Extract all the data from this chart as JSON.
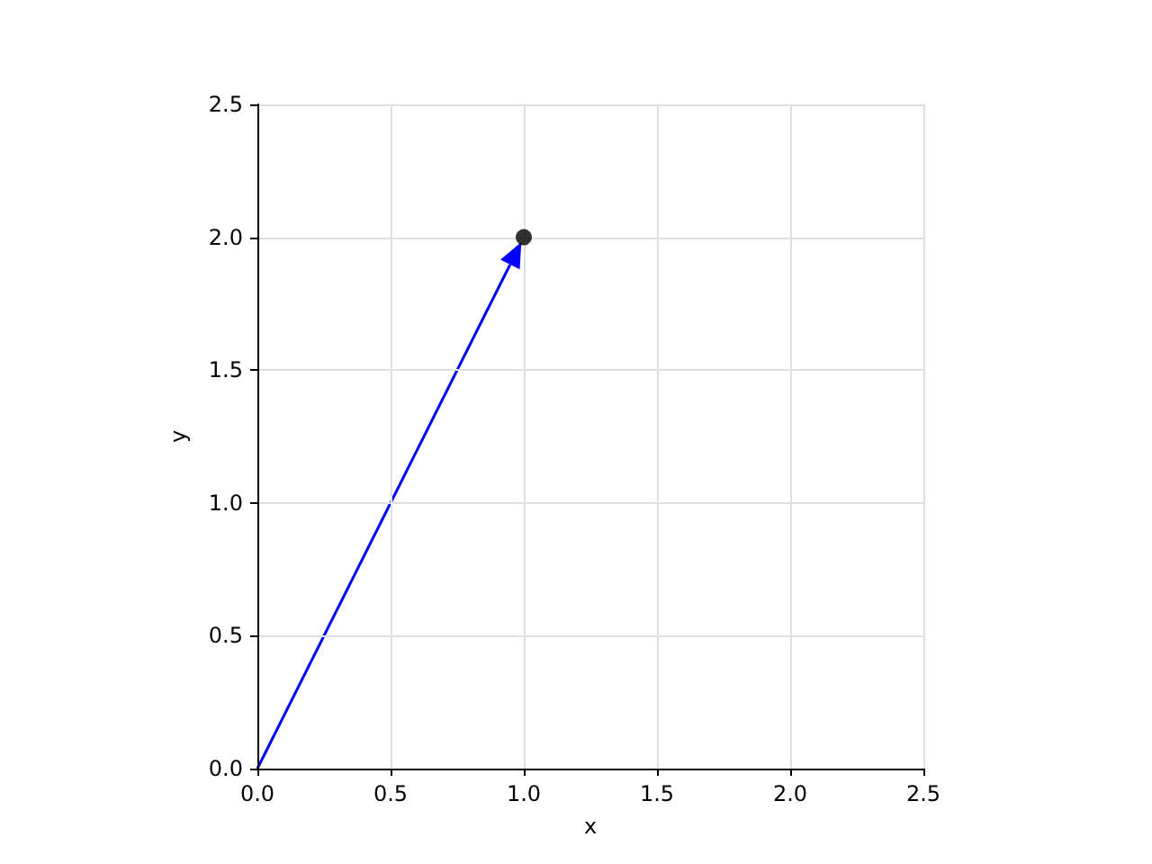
{
  "chart_data": {
    "type": "scatter",
    "xlabel": "x",
    "ylabel": "y",
    "series": [
      {
        "color": "#000000",
        "x": [
          1
        ],
        "values": [
          2
        ],
        "marker": "circle"
      }
    ],
    "xlim": [
      0,
      2.5
    ],
    "ylim": [
      0,
      2.5
    ],
    "xticks": [
      {
        "value": 0,
        "label": "0.0"
      },
      {
        "value": 0.5,
        "label": "0.5"
      },
      {
        "value": 1,
        "label": "1.0"
      },
      {
        "value": 1.5,
        "label": "1.5"
      },
      {
        "value": 2,
        "label": "2.0"
      },
      {
        "value": 2.5,
        "label": "2.5"
      }
    ],
    "yticks": [
      {
        "value": 0,
        "label": "0.0"
      },
      {
        "value": 0.5,
        "label": "0.5"
      },
      {
        "value": 1,
        "label": "1.0"
      },
      {
        "value": 1.5,
        "label": "1.5"
      },
      {
        "value": 2,
        "label": "2.0"
      },
      {
        "value": 2.5,
        "label": "2.5"
      }
    ],
    "grid": true
  }
}
